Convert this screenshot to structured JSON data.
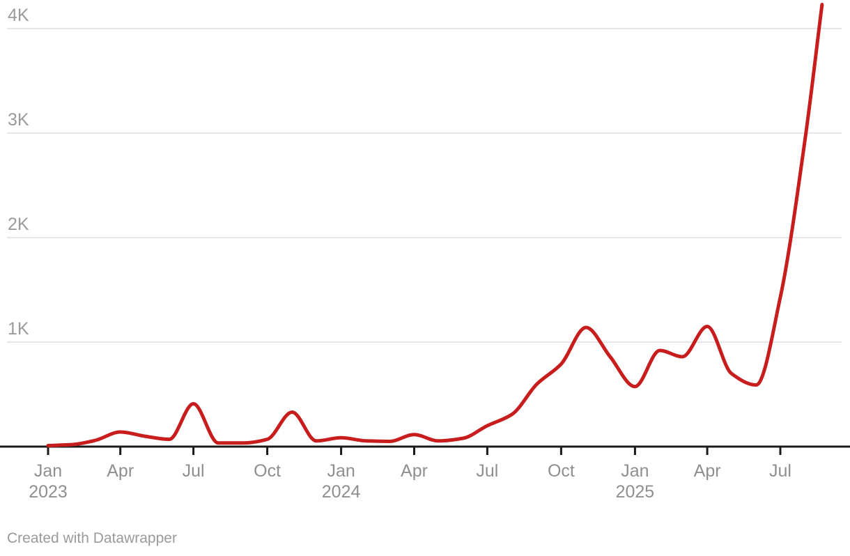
{
  "footer": {
    "text": "Created with Datawrapper"
  },
  "chart_data": {
    "type": "line",
    "title": "",
    "xlabel": "",
    "ylabel": "",
    "grid": true,
    "legend": "none",
    "line_color": "#c71e1d",
    "gridline_color": "#e7e7e7",
    "axis_color": "#1a1a1a",
    "label_color": "#9b9b9b",
    "x_domain": [
      "2023-01-01",
      "2025-09-01"
    ],
    "ylim": [
      0,
      4270
    ],
    "y_ticks": [
      {
        "value": 1000,
        "label": "1K"
      },
      {
        "value": 2000,
        "label": "2K"
      },
      {
        "value": 3000,
        "label": "3K"
      },
      {
        "value": 4000,
        "label": "4K"
      }
    ],
    "x_ticks": [
      {
        "date": "2023-01-01",
        "label": "Jan",
        "year": "2023"
      },
      {
        "date": "2023-04-01",
        "label": "Apr",
        "year": ""
      },
      {
        "date": "2023-07-01",
        "label": "Jul",
        "year": ""
      },
      {
        "date": "2023-10-01",
        "label": "Oct",
        "year": ""
      },
      {
        "date": "2024-01-01",
        "label": "Jan",
        "year": "2024"
      },
      {
        "date": "2024-04-01",
        "label": "Apr",
        "year": ""
      },
      {
        "date": "2024-07-01",
        "label": "Jul",
        "year": ""
      },
      {
        "date": "2024-10-01",
        "label": "Oct",
        "year": ""
      },
      {
        "date": "2025-01-01",
        "label": "Jan",
        "year": "2025"
      },
      {
        "date": "2025-04-01",
        "label": "Apr",
        "year": ""
      },
      {
        "date": "2025-07-01",
        "label": "Jul",
        "year": ""
      }
    ],
    "series": [
      {
        "name": "value",
        "points": [
          {
            "date": "2023-01-01",
            "value": 10
          },
          {
            "date": "2023-02-01",
            "value": 20
          },
          {
            "date": "2023-03-01",
            "value": 60
          },
          {
            "date": "2023-04-01",
            "value": 140
          },
          {
            "date": "2023-05-01",
            "value": 100
          },
          {
            "date": "2023-06-01",
            "value": 70
          },
          {
            "date": "2023-07-01",
            "value": 410
          },
          {
            "date": "2023-08-01",
            "value": 35
          },
          {
            "date": "2023-09-01",
            "value": 35
          },
          {
            "date": "2023-10-01",
            "value": 70
          },
          {
            "date": "2023-11-01",
            "value": 330
          },
          {
            "date": "2023-12-01",
            "value": 55
          },
          {
            "date": "2024-01-01",
            "value": 85
          },
          {
            "date": "2024-02-01",
            "value": 55
          },
          {
            "date": "2024-03-01",
            "value": 50
          },
          {
            "date": "2024-04-01",
            "value": 115
          },
          {
            "date": "2024-05-01",
            "value": 55
          },
          {
            "date": "2024-06-01",
            "value": 80
          },
          {
            "date": "2024-07-01",
            "value": 200
          },
          {
            "date": "2024-08-01",
            "value": 310
          },
          {
            "date": "2024-09-01",
            "value": 600
          },
          {
            "date": "2024-10-01",
            "value": 790
          },
          {
            "date": "2024-11-01",
            "value": 1140
          },
          {
            "date": "2024-12-01",
            "value": 860
          },
          {
            "date": "2025-01-01",
            "value": 575
          },
          {
            "date": "2025-02-01",
            "value": 920
          },
          {
            "date": "2025-03-01",
            "value": 860
          },
          {
            "date": "2025-04-01",
            "value": 1150
          },
          {
            "date": "2025-05-01",
            "value": 700
          },
          {
            "date": "2025-06-01",
            "value": 590
          },
          {
            "date": "2025-07-01",
            "value": 1430
          },
          {
            "date": "2025-08-01",
            "value": 2950
          },
          {
            "date": "2025-08-22",
            "value": 4230
          }
        ]
      }
    ]
  }
}
